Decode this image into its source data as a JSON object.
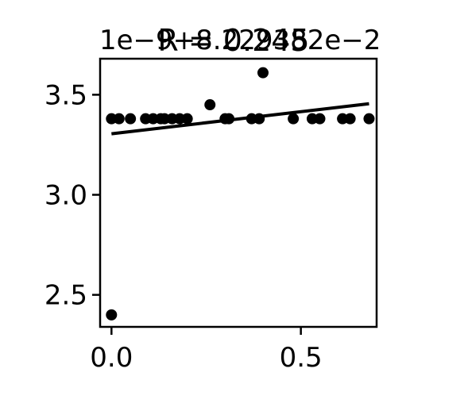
{
  "chart_data": {
    "type": "scatter",
    "title": "R = 0.245",
    "axis_offset_text": "1e−9+8.229382e−2",
    "xlabel": "",
    "ylabel": "",
    "xlim": [
      -0.03,
      0.7
    ],
    "ylim": [
      2.34,
      3.68
    ],
    "x_ticks": [
      0.0,
      0.5
    ],
    "x_tick_labels": [
      "0.0",
      "0.5"
    ],
    "y_ticks": [
      2.5,
      3.0,
      3.5
    ],
    "y_tick_labels": [
      "2.5",
      "3.0",
      "3.5"
    ],
    "grid": false,
    "point_color": "#000000",
    "line_color": "#000000",
    "points": [
      {
        "x": 0.0,
        "y": 2.4
      },
      {
        "x": 0.0,
        "y": 3.38
      },
      {
        "x": 0.02,
        "y": 3.38
      },
      {
        "x": 0.05,
        "y": 3.38
      },
      {
        "x": 0.09,
        "y": 3.38
      },
      {
        "x": 0.11,
        "y": 3.38
      },
      {
        "x": 0.13,
        "y": 3.38
      },
      {
        "x": 0.14,
        "y": 3.38
      },
      {
        "x": 0.16,
        "y": 3.38
      },
      {
        "x": 0.18,
        "y": 3.38
      },
      {
        "x": 0.2,
        "y": 3.38
      },
      {
        "x": 0.26,
        "y": 3.45
      },
      {
        "x": 0.3,
        "y": 3.38
      },
      {
        "x": 0.31,
        "y": 3.38
      },
      {
        "x": 0.37,
        "y": 3.38
      },
      {
        "x": 0.39,
        "y": 3.38
      },
      {
        "x": 0.4,
        "y": 3.61
      },
      {
        "x": 0.48,
        "y": 3.38
      },
      {
        "x": 0.53,
        "y": 3.38
      },
      {
        "x": 0.55,
        "y": 3.38
      },
      {
        "x": 0.61,
        "y": 3.38
      },
      {
        "x": 0.63,
        "y": 3.38
      },
      {
        "x": 0.68,
        "y": 3.38
      }
    ],
    "fit_line": {
      "x": [
        0.0,
        0.68
      ],
      "y": [
        3.305,
        3.455
      ]
    }
  }
}
